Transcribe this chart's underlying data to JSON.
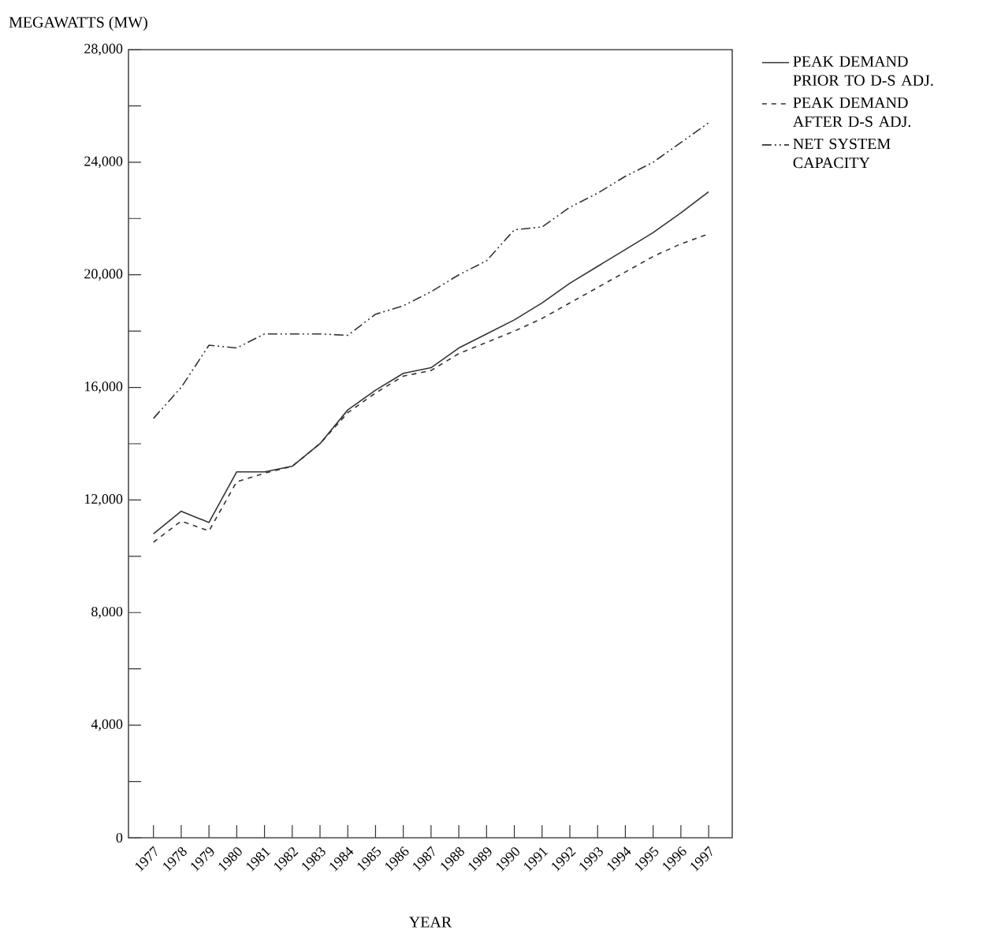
{
  "chart_data": {
    "type": "line",
    "xlabel": "YEAR",
    "ylabel": "MEGAWATTS (MW)",
    "categories": [
      "1977",
      "1978",
      "1979",
      "1980",
      "1981",
      "1982",
      "1983",
      "1984",
      "1985",
      "1986",
      "1987",
      "1988",
      "1989",
      "1990",
      "1991",
      "1992",
      "1993",
      "1994",
      "1995",
      "1996",
      "1997"
    ],
    "series": [
      {
        "name": "PEAK DEMAND PRIOR TO D-S ADJ.",
        "color": "#333333",
        "line_style": "solid",
        "values": [
          10800,
          11600,
          11200,
          13000,
          13000,
          13200,
          14000,
          15200,
          15900,
          16500,
          16700,
          17400,
          17900,
          18400,
          19000,
          19700,
          20300,
          20900,
          21500,
          22200,
          22950
        ]
      },
      {
        "name": "PEAK DEMAND AFTER D-S ADJ.",
        "color": "#333333",
        "line_style": "dashed",
        "values": [
          10500,
          11250,
          10900,
          12650,
          12950,
          13200,
          14000,
          15100,
          15800,
          16400,
          16600,
          17200,
          17600,
          18000,
          18450,
          19000,
          19550,
          20100,
          20650,
          21100,
          21450
        ]
      },
      {
        "name": "NET SYSTEM CAPACITY",
        "color": "#333333",
        "line_style": "dashdotdot",
        "values": [
          14900,
          16000,
          17500,
          17400,
          17900,
          17900,
          17900,
          17850,
          18600,
          18900,
          19400,
          20000,
          20500,
          21600,
          21700,
          22400,
          22900,
          23500,
          24000,
          24700,
          25400
        ]
      }
    ],
    "ylim": [
      0,
      28000
    ],
    "yticks": [
      {
        "value": 0,
        "label": "0"
      },
      {
        "value": 4000,
        "label": "4,000"
      },
      {
        "value": 8000,
        "label": "8,000"
      },
      {
        "value": 12000,
        "label": "12,000"
      },
      {
        "value": 16000,
        "label": "16,000"
      },
      {
        "value": 20000,
        "label": "20,000"
      },
      {
        "value": 24000,
        "label": "24,000"
      },
      {
        "value": 28000,
        "label": "28,000"
      }
    ],
    "grid": false,
    "legend": "right",
    "marker": "none"
  }
}
